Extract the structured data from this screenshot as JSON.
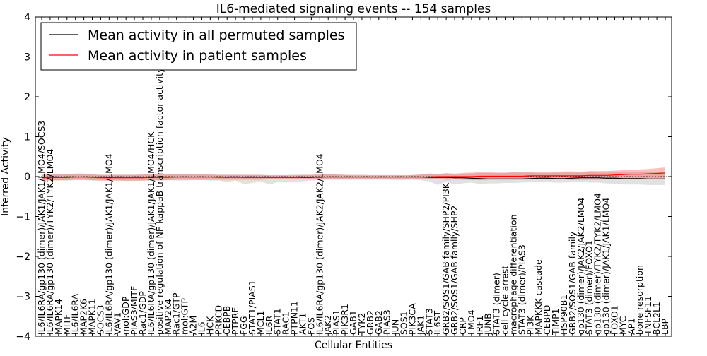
{
  "chart_data": {
    "type": "line",
    "title": "IL6-mediated signaling events -- 154 samples",
    "xlabel": "Cellular Entities",
    "ylabel": "Inferred Activity",
    "ylim": [
      -4,
      4
    ],
    "yticks": [
      -4,
      -3,
      -2,
      -1,
      0,
      1,
      2,
      3,
      4
    ],
    "grid": false,
    "legend_position": "top-left",
    "categories": [
      "IL6/IL6RA/gp130 (dimer)/JAK1/JAK1/LMO4/SOCS3",
      "IL6/IL6RA/gp130 (dimer)/TYK2/TYK2/LMO4",
      "MAPK14",
      "MITF",
      "IL6/IL6RA",
      "MAP2K6",
      "MAPK11",
      "SOCS3",
      "IL6/IL6RA/gp130 (dimer)/JAK1/JAK1/LMO4",
      "VAV1",
      "mol:GDP",
      "PIAS3/MITF",
      "Rac1/GDP",
      "IL6/IL6RA/gp130 (dimer)/JAK1/JAK1/LMO4/HCK",
      "positive regulation of NF-kappaB transcription factor activity",
      "MAP2K4",
      "Rac1/GTP",
      "mol:GTP",
      "A2M",
      "IL6",
      "HCK",
      "PRKCD",
      "CEBPB",
      "PTPRE",
      "FGG",
      "STAT1/PIAS1",
      "MCL1",
      "IL6R",
      "STAT1",
      "RAC1",
      "PTPN11",
      "AKT1",
      "FOS",
      "IL6/IL6RA/gp130 (dimer)/JAK2/JAK2/LMO4",
      "JAK2",
      "PIAS1",
      "PIK3R1",
      "GAB1",
      "TYK2",
      "GRB2",
      "GAB2",
      "PIAS3",
      "JUN",
      "SOS1",
      "PIK3CA",
      "JAK1",
      "STAT3",
      "IL6ST",
      "GRB2/SOS1/GAB family/SHP2/PI3K",
      "GRB2/SOS1/GAB family/SHP2",
      "CRP",
      "LMO4",
      "IRF1",
      "JUNB",
      "STAT3 (dimer)",
      "cell cycle arrest",
      "macrophage differentiation",
      "STAT3 (dimer)/PIAS3",
      "PI3K",
      "MAPKKK cascade",
      "CEBPD",
      "TIMP1",
      "HSP90B1",
      "GRB2/SOS1/GAB family",
      "gp130 (dimer)/JAK2/JAK2/LMO4",
      "STAT3 (dimer)/FOXO1",
      "gp130 (dimer)/TYK2/TYK2/LMO4",
      "gp130 (dimer)/JAK1/JAK1/LMO4",
      "FOXO1",
      "MYC",
      "AP1",
      "bone resorption",
      "TNFSF11",
      "BCL2L1",
      "LBP"
    ],
    "series": [
      {
        "name": "Mean activity in all permuted samples",
        "color": "#000000",
        "values": [
          -0.02,
          -0.02,
          -0.02,
          -0.02,
          -0.01,
          -0.01,
          -0.01,
          -0.02,
          -0.02,
          -0.02,
          -0.02,
          -0.02,
          -0.02,
          -0.02,
          -0.02,
          -0.01,
          -0.01,
          -0.01,
          -0.01,
          -0.01,
          -0.01,
          -0.01,
          -0.02,
          -0.01,
          -0.02,
          -0.02,
          -0.02,
          -0.02,
          -0.02,
          -0.02,
          -0.02,
          -0.02,
          -0.02,
          -0.01,
          -0.01,
          -0.01,
          -0.01,
          -0.01,
          -0.01,
          -0.01,
          -0.01,
          -0.01,
          -0.01,
          -0.01,
          -0.01,
          -0.01,
          -0.02,
          -0.02,
          -0.02,
          -0.03,
          -0.03,
          -0.04,
          -0.05,
          -0.06,
          -0.06,
          -0.06,
          -0.06,
          -0.06,
          -0.05,
          -0.04,
          -0.04,
          -0.05,
          -0.05,
          -0.04,
          -0.03,
          -0.03,
          -0.03,
          -0.04,
          -0.04,
          -0.05,
          -0.05,
          -0.05,
          -0.06,
          -0.06,
          -0.06
        ],
        "upper": [
          0.05,
          0.05,
          0.06,
          0.06,
          0.08,
          0.08,
          0.06,
          0.05,
          0.05,
          0.06,
          0.06,
          0.06,
          0.05,
          0.05,
          0.05,
          0.06,
          0.07,
          0.07,
          0.06,
          0.06,
          0.05,
          0.06,
          0.06,
          0.06,
          0.05,
          0.05,
          0.05,
          0.04,
          0.04,
          0.04,
          0.05,
          0.05,
          0.05,
          0.06,
          0.06,
          0.06,
          0.05,
          0.05,
          0.05,
          0.04,
          0.04,
          0.04,
          0.04,
          0.04,
          0.04,
          0.05,
          0.06,
          0.06,
          0.07,
          0.06,
          0.07,
          0.08,
          0.09,
          0.09,
          0.09,
          0.09,
          0.1,
          0.1,
          0.1,
          0.09,
          0.09,
          0.1,
          0.1,
          0.1,
          0.1,
          0.11,
          0.1,
          0.1,
          0.11,
          0.12,
          0.12,
          0.12,
          0.12,
          0.12,
          0.12
        ],
        "lower": [
          -0.09,
          -0.09,
          -0.1,
          -0.1,
          -0.09,
          -0.09,
          -0.1,
          -0.1,
          -0.1,
          -0.1,
          -0.11,
          -0.11,
          -0.1,
          -0.1,
          -0.1,
          -0.09,
          -0.1,
          -0.1,
          -0.09,
          -0.09,
          -0.1,
          -0.1,
          -0.14,
          -0.1,
          -0.19,
          -0.16,
          -0.12,
          -0.2,
          -0.14,
          -0.15,
          -0.12,
          -0.12,
          -0.1,
          -0.09,
          -0.08,
          -0.08,
          -0.08,
          -0.08,
          -0.08,
          -0.08,
          -0.08,
          -0.08,
          -0.09,
          -0.09,
          -0.08,
          -0.09,
          -0.12,
          -0.21,
          -0.13,
          -0.2,
          -0.17,
          -0.15,
          -0.19,
          -0.17,
          -0.17,
          -0.16,
          -0.16,
          -0.15,
          -0.14,
          -0.14,
          -0.14,
          -0.15,
          -0.15,
          -0.14,
          -0.13,
          -0.15,
          -0.15,
          -0.17,
          -0.18,
          -0.2,
          -0.2,
          -0.2,
          -0.21,
          -0.21,
          -0.21
        ]
      },
      {
        "name": "Mean activity in patient samples",
        "color": "#ff0000",
        "values": [
          -0.03,
          -0.03,
          -0.02,
          -0.02,
          -0.01,
          -0.01,
          -0.02,
          -0.03,
          -0.03,
          -0.03,
          -0.03,
          -0.03,
          -0.03,
          -0.02,
          -0.02,
          -0.02,
          -0.01,
          -0.01,
          -0.01,
          -0.01,
          -0.01,
          -0.02,
          -0.02,
          -0.02,
          -0.02,
          -0.02,
          -0.02,
          -0.02,
          -0.02,
          -0.02,
          -0.02,
          -0.01,
          -0.01,
          -0.01,
          -0.01,
          -0.01,
          -0.01,
          -0.01,
          -0.01,
          -0.01,
          -0.01,
          -0.01,
          -0.01,
          -0.01,
          -0.01,
          -0.01,
          -0.01,
          0.0,
          0.0,
          0.0,
          0.0,
          0.0,
          0.01,
          0.01,
          0.01,
          0.01,
          0.01,
          0.01,
          0.02,
          0.02,
          0.02,
          0.02,
          0.02,
          0.02,
          0.02,
          0.03,
          0.03,
          0.03,
          0.04,
          0.05,
          0.06,
          0.06,
          0.07,
          0.08,
          0.09
        ],
        "upper": [
          0.04,
          0.05,
          0.05,
          0.05,
          0.06,
          0.06,
          0.05,
          0.04,
          0.04,
          0.04,
          0.04,
          0.04,
          0.05,
          0.06,
          0.05,
          0.05,
          0.06,
          0.06,
          0.05,
          0.05,
          0.05,
          0.04,
          0.04,
          0.04,
          0.04,
          0.04,
          0.04,
          0.03,
          0.03,
          0.03,
          0.03,
          0.04,
          0.04,
          0.05,
          0.06,
          0.05,
          0.04,
          0.03,
          0.03,
          0.03,
          0.03,
          0.03,
          0.03,
          0.03,
          0.04,
          0.05,
          0.08,
          0.06,
          0.09,
          0.07,
          0.09,
          0.1,
          0.11,
          0.11,
          0.1,
          0.1,
          0.11,
          0.12,
          0.12,
          0.11,
          0.11,
          0.12,
          0.13,
          0.13,
          0.12,
          0.14,
          0.14,
          0.14,
          0.15,
          0.16,
          0.17,
          0.18,
          0.19,
          0.21,
          0.23
        ],
        "lower": [
          -0.1,
          -0.1,
          -0.09,
          -0.09,
          -0.08,
          -0.08,
          -0.09,
          -0.1,
          -0.1,
          -0.1,
          -0.1,
          -0.1,
          -0.1,
          -0.09,
          -0.09,
          -0.09,
          -0.08,
          -0.08,
          -0.08,
          -0.08,
          -0.08,
          -0.08,
          -0.08,
          -0.08,
          -0.08,
          -0.08,
          -0.08,
          -0.07,
          -0.07,
          -0.07,
          -0.07,
          -0.06,
          -0.06,
          -0.06,
          -0.06,
          -0.06,
          -0.06,
          -0.05,
          -0.05,
          -0.05,
          -0.05,
          -0.05,
          -0.05,
          -0.05,
          -0.05,
          -0.06,
          -0.06,
          -0.06,
          -0.08,
          -0.07,
          -0.08,
          -0.08,
          -0.09,
          -0.08,
          -0.08,
          -0.08,
          -0.08,
          -0.08,
          -0.07,
          -0.07,
          -0.07,
          -0.07,
          -0.07,
          -0.08,
          -0.08,
          -0.08,
          -0.08,
          -0.07,
          -0.07,
          -0.06,
          -0.05,
          -0.05,
          -0.05,
          -0.05,
          -0.05
        ]
      }
    ]
  }
}
